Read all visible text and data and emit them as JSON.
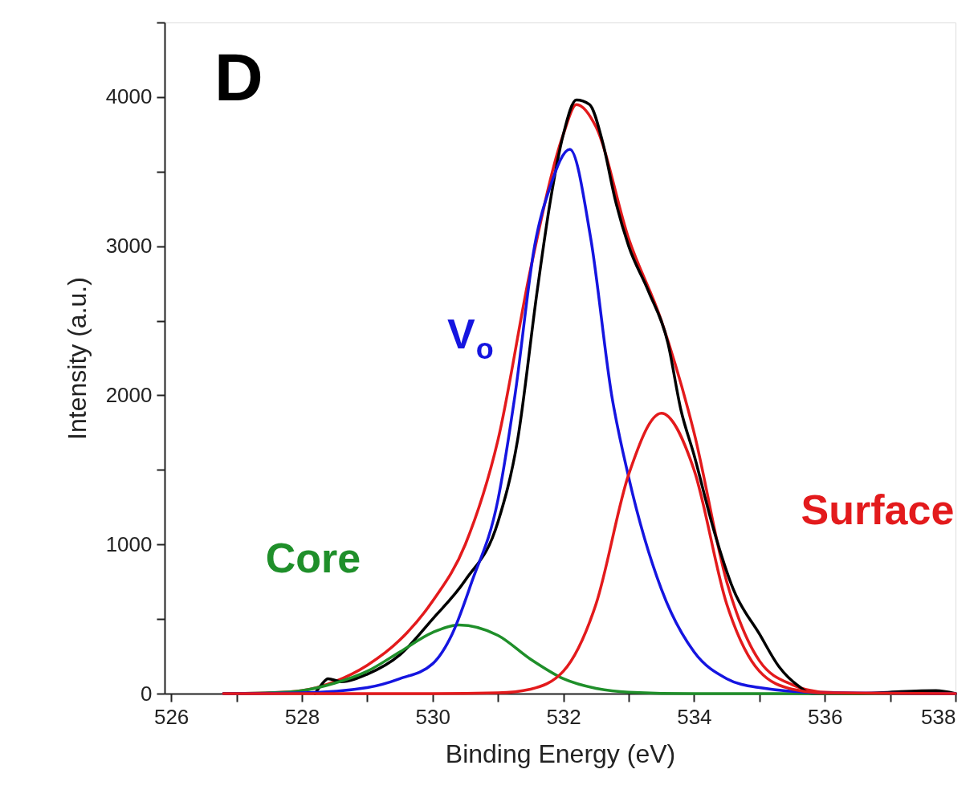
{
  "chart_data": {
    "type": "line",
    "xlabel": "Binding Energy (eV)",
    "ylabel": "Intensity (a.u.)",
    "annotations": [
      "D"
    ],
    "xlim": [
      525.9,
      538
    ],
    "ylim": [
      0,
      4500
    ],
    "xticks": [
      526,
      {
        "value": 527,
        "label": null
      },
      528,
      {
        "value": 529,
        "label": null
      },
      530,
      {
        "value": 531,
        "label": null
      },
      532,
      {
        "value": 533,
        "label": null
      },
      534,
      {
        "value": 535,
        "label": null
      },
      536,
      {
        "value": 537,
        "label": null
      },
      538
    ],
    "yticks": [
      0,
      {
        "value": 500,
        "label": null
      },
      1000,
      {
        "value": 1500,
        "label": null
      },
      2000,
      {
        "value": 2500,
        "label": null
      },
      3000,
      {
        "value": 3500,
        "label": null
      },
      4000,
      {
        "value": 4500,
        "label": null
      }
    ],
    "grid": false,
    "legend": false,
    "marker": "none",
    "line_style": "solid",
    "series": [
      {
        "color": "#e31a1c",
        "x": [
          526.8,
          527.5,
          528,
          528.5,
          529,
          529.5,
          530,
          530.5,
          531,
          531.5,
          532,
          532.2,
          532.5,
          533,
          533.5,
          534,
          534.5,
          535,
          535.5,
          536,
          537,
          538
        ],
        "values": [
          0,
          5,
          20,
          80,
          190,
          360,
          620,
          1000,
          1700,
          2850,
          3750,
          3950,
          3800,
          3050,
          2500,
          1750,
          750,
          220,
          60,
          10,
          0,
          0
        ]
      },
      {
        "color": "#000000",
        "x": [
          528.2,
          528.3,
          528.4,
          528.6,
          529,
          529.5,
          530,
          530.5,
          531,
          531.3,
          531.6,
          531.8,
          532,
          532.2,
          532.4,
          532.6,
          532.8,
          533,
          533.3,
          533.6,
          533.8,
          534,
          534.3,
          534.6,
          535,
          535.3,
          535.6,
          535.8,
          536.5,
          537,
          537.7,
          538
        ],
        "values": [
          0,
          60,
          100,
          80,
          130,
          260,
          500,
          760,
          1150,
          1700,
          2700,
          3300,
          3750,
          3980,
          3950,
          3700,
          3300,
          3000,
          2700,
          2350,
          1900,
          1600,
          1100,
          700,
          400,
          180,
          50,
          0,
          0,
          10,
          20,
          0
        ]
      },
      {
        "name": "Core",
        "color": "#1f8f2a",
        "x": [
          526.8,
          527.5,
          528,
          528.5,
          529,
          529.5,
          530,
          530.4,
          531,
          531.5,
          532,
          532.5,
          533,
          534,
          536,
          538
        ],
        "values": [
          0,
          5,
          20,
          70,
          150,
          280,
          410,
          460,
          390,
          230,
          100,
          35,
          10,
          0,
          0,
          0
        ]
      },
      {
        "name": "V$_{o}$",
        "color": "#1515e0",
        "x": [
          526.8,
          528,
          529,
          529.5,
          530,
          530.3,
          530.6,
          531,
          531.26,
          531.56,
          531.8,
          532.1,
          532.42,
          532.74,
          533,
          533.5,
          534,
          534.5,
          535,
          536,
          538
        ],
        "values": [
          0,
          5,
          40,
          100,
          200,
          400,
          750,
          1300,
          2000,
          3000,
          3400,
          3650,
          3050,
          2000,
          1450,
          700,
          280,
          100,
          40,
          5,
          0
        ]
      },
      {
        "name": "Surface",
        "color": "#e31a1c",
        "x": [
          526.8,
          530,
          531,
          531.5,
          532,
          532.5,
          533,
          533.5,
          534,
          534.5,
          535,
          535.5,
          536,
          538
        ],
        "values": [
          0,
          0,
          5,
          30,
          150,
          600,
          1470,
          1880,
          1500,
          600,
          150,
          30,
          5,
          0
        ]
      }
    ]
  }
}
